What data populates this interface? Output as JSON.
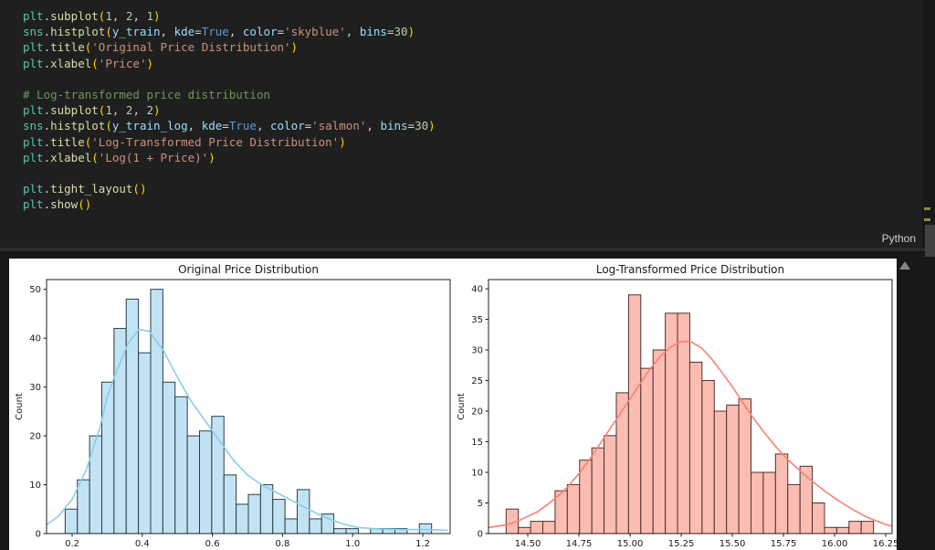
{
  "editor": {
    "language_label": "Python",
    "token_colors": {
      "ty": "#4ec9b0",
      "fn": "#dcdcaa",
      "nu": "#b5cea8",
      "va": "#9cdcfe",
      "kw": "#569cd6",
      "st": "#ce9178",
      "co": "#6a9955",
      "pl": "#d4d4d4",
      "br": "#ffd700"
    },
    "code_lines": [
      [
        [
          "plt",
          "ty"
        ],
        [
          ".",
          "pl"
        ],
        [
          "subplot",
          "fn"
        ],
        [
          "(",
          "br"
        ],
        [
          "1",
          "nu"
        ],
        [
          ", ",
          "pl"
        ],
        [
          "2",
          "nu"
        ],
        [
          ", ",
          "pl"
        ],
        [
          "1",
          "nu"
        ],
        [
          ")",
          "br"
        ]
      ],
      [
        [
          "sns",
          "ty"
        ],
        [
          ".",
          "pl"
        ],
        [
          "histplot",
          "fn"
        ],
        [
          "(",
          "br"
        ],
        [
          "y_train",
          "va"
        ],
        [
          ", ",
          "pl"
        ],
        [
          "kde",
          "va"
        ],
        [
          "=",
          "pl"
        ],
        [
          "True",
          "kw"
        ],
        [
          ", ",
          "pl"
        ],
        [
          "color",
          "va"
        ],
        [
          "=",
          "pl"
        ],
        [
          "'skyblue'",
          "st"
        ],
        [
          ", ",
          "pl"
        ],
        [
          "bins",
          "va"
        ],
        [
          "=",
          "pl"
        ],
        [
          "30",
          "nu"
        ],
        [
          ")",
          "br"
        ]
      ],
      [
        [
          "plt",
          "ty"
        ],
        [
          ".",
          "pl"
        ],
        [
          "title",
          "fn"
        ],
        [
          "(",
          "br"
        ],
        [
          "'Original Price Distribution'",
          "st"
        ],
        [
          ")",
          "br"
        ]
      ],
      [
        [
          "plt",
          "ty"
        ],
        [
          ".",
          "pl"
        ],
        [
          "xlabel",
          "fn"
        ],
        [
          "(",
          "br"
        ],
        [
          "'Price'",
          "st"
        ],
        [
          ")",
          "br"
        ]
      ],
      [],
      [
        [
          "# Log-transformed price distribution",
          "co"
        ]
      ],
      [
        [
          "plt",
          "ty"
        ],
        [
          ".",
          "pl"
        ],
        [
          "subplot",
          "fn"
        ],
        [
          "(",
          "br"
        ],
        [
          "1",
          "nu"
        ],
        [
          ", ",
          "pl"
        ],
        [
          "2",
          "nu"
        ],
        [
          ", ",
          "pl"
        ],
        [
          "2",
          "nu"
        ],
        [
          ")",
          "br"
        ]
      ],
      [
        [
          "sns",
          "ty"
        ],
        [
          ".",
          "pl"
        ],
        [
          "histplot",
          "fn"
        ],
        [
          "(",
          "br"
        ],
        [
          "y_train_log",
          "va"
        ],
        [
          ", ",
          "pl"
        ],
        [
          "kde",
          "va"
        ],
        [
          "=",
          "pl"
        ],
        [
          "True",
          "kw"
        ],
        [
          ", ",
          "pl"
        ],
        [
          "color",
          "va"
        ],
        [
          "=",
          "pl"
        ],
        [
          "'salmon'",
          "st"
        ],
        [
          ", ",
          "pl"
        ],
        [
          "bins",
          "va"
        ],
        [
          "=",
          "pl"
        ],
        [
          "30",
          "nu"
        ],
        [
          ")",
          "br"
        ]
      ],
      [
        [
          "plt",
          "ty"
        ],
        [
          ".",
          "pl"
        ],
        [
          "title",
          "fn"
        ],
        [
          "(",
          "br"
        ],
        [
          "'Log-Transformed Price Distribution'",
          "st"
        ],
        [
          ")",
          "br"
        ]
      ],
      [
        [
          "plt",
          "ty"
        ],
        [
          ".",
          "pl"
        ],
        [
          "xlabel",
          "fn"
        ],
        [
          "(",
          "br"
        ],
        [
          "'Log(1 + Price)'",
          "st"
        ],
        [
          ")",
          "br"
        ]
      ],
      [],
      [
        [
          "plt",
          "ty"
        ],
        [
          ".",
          "pl"
        ],
        [
          "tight_layout",
          "fn"
        ],
        [
          "(",
          "br"
        ],
        [
          ")",
          "br"
        ]
      ],
      [
        [
          "plt",
          "ty"
        ],
        [
          ".",
          "pl"
        ],
        [
          "show",
          "fn"
        ],
        [
          "(",
          "br"
        ],
        [
          ")",
          "br"
        ]
      ]
    ]
  },
  "chart_data": [
    {
      "type": "bar",
      "subtype": "histogram+kde",
      "title": "Original Price Distribution",
      "ylabel": "Count",
      "bins_start": 0.18,
      "bin_width": 0.034833,
      "values": [
        5,
        11,
        20,
        31,
        42,
        48,
        37,
        50,
        31,
        28,
        20,
        21,
        24,
        12,
        6,
        8,
        10,
        7,
        3,
        9,
        3,
        4,
        1,
        1,
        0,
        1,
        1,
        1,
        0,
        2
      ],
      "xticks": [
        0.2,
        0.4,
        0.6,
        0.8,
        1.0,
        1.2
      ],
      "xtick_labels": [
        "0.2",
        "0.4",
        "0.6",
        "0.8",
        "1.0",
        "1.2"
      ],
      "yticks": [
        0,
        10,
        20,
        30,
        40,
        50
      ],
      "xlim": [
        0.127,
        1.278
      ],
      "ylim": [
        0,
        52
      ],
      "grid": false,
      "bar_fill": "#c2e3f3",
      "bar_edge": "#2d3c47",
      "kde_color": "#87ceeb",
      "kde_points": [
        [
          0.127,
          1.8
        ],
        [
          0.16,
          3.5
        ],
        [
          0.2,
          7
        ],
        [
          0.24,
          13
        ],
        [
          0.28,
          22
        ],
        [
          0.3,
          28
        ],
        [
          0.32,
          32
        ],
        [
          0.36,
          39
        ],
        [
          0.39,
          41.8
        ],
        [
          0.42,
          41.4
        ],
        [
          0.46,
          37.5
        ],
        [
          0.5,
          32
        ],
        [
          0.54,
          27
        ],
        [
          0.58,
          23
        ],
        [
          0.62,
          19
        ],
        [
          0.66,
          15
        ],
        [
          0.7,
          12
        ],
        [
          0.74,
          10
        ],
        [
          0.78,
          8.5
        ],
        [
          0.82,
          7
        ],
        [
          0.86,
          5.5
        ],
        [
          0.9,
          4
        ],
        [
          0.94,
          2.8
        ],
        [
          0.98,
          1.8
        ],
        [
          1.02,
          1.2
        ],
        [
          1.08,
          0.9
        ],
        [
          1.14,
          0.8
        ],
        [
          1.2,
          0.8
        ],
        [
          1.27,
          0.7
        ]
      ]
    },
    {
      "type": "bar",
      "subtype": "histogram+kde",
      "title": "Log-Transformed Price Distribution",
      "ylabel": "Count",
      "bins_start": 14.394,
      "bin_width": 0.05987,
      "values": [
        4,
        1,
        2,
        2,
        7,
        8,
        12,
        14,
        16,
        23,
        39,
        27,
        30,
        36,
        36,
        28,
        25,
        20,
        21,
        22,
        10,
        10,
        13,
        8,
        11,
        5,
        1,
        1,
        2,
        2
      ],
      "xticks": [
        14.5,
        14.75,
        15.0,
        15.25,
        15.5,
        15.75,
        16.0,
        16.25
      ],
      "xtick_labels": [
        "14.50",
        "14.75",
        "15.00",
        "15.25",
        "15.50",
        "15.75",
        "16.00",
        "16.25"
      ],
      "yticks": [
        0,
        5,
        10,
        15,
        20,
        25,
        30,
        35,
        40
      ],
      "xlim": [
        14.308,
        16.281
      ],
      "ylim": [
        0,
        41.5
      ],
      "grid": false,
      "bar_fill": "#fbbcb2",
      "bar_edge": "#4a3430",
      "kde_color": "#fa8072",
      "kde_points": [
        [
          14.308,
          1.0
        ],
        [
          14.394,
          1.4
        ],
        [
          14.45,
          2.0
        ],
        [
          14.5,
          2.8
        ],
        [
          14.55,
          3.6
        ],
        [
          14.6,
          4.8
        ],
        [
          14.65,
          6.2
        ],
        [
          14.7,
          7.8
        ],
        [
          14.75,
          9.8
        ],
        [
          14.8,
          12
        ],
        [
          14.85,
          14.5
        ],
        [
          14.9,
          17
        ],
        [
          14.95,
          19.5
        ],
        [
          15.0,
          22
        ],
        [
          15.05,
          24.5
        ],
        [
          15.1,
          27
        ],
        [
          15.15,
          29
        ],
        [
          15.2,
          30.5
        ],
        [
          15.25,
          31.4
        ],
        [
          15.3,
          31.3
        ],
        [
          15.35,
          30.3
        ],
        [
          15.4,
          28.5
        ],
        [
          15.45,
          26.3
        ],
        [
          15.5,
          24
        ],
        [
          15.55,
          21.5
        ],
        [
          15.6,
          19
        ],
        [
          15.65,
          16.8
        ],
        [
          15.7,
          14.7
        ],
        [
          15.75,
          12.8
        ],
        [
          15.8,
          11.2
        ],
        [
          15.85,
          9.7
        ],
        [
          15.9,
          8.3
        ],
        [
          15.95,
          7
        ],
        [
          16.0,
          5.8
        ],
        [
          16.05,
          4.7
        ],
        [
          16.1,
          3.7
        ],
        [
          16.15,
          2.8
        ],
        [
          16.2,
          2.1
        ],
        [
          16.25,
          1.5
        ],
        [
          16.281,
          1.2
        ]
      ]
    }
  ],
  "figure": {
    "background": "#ffffff"
  },
  "scrollbar": {
    "thumb_color": "#424242",
    "marks": [
      227,
      239
    ]
  }
}
